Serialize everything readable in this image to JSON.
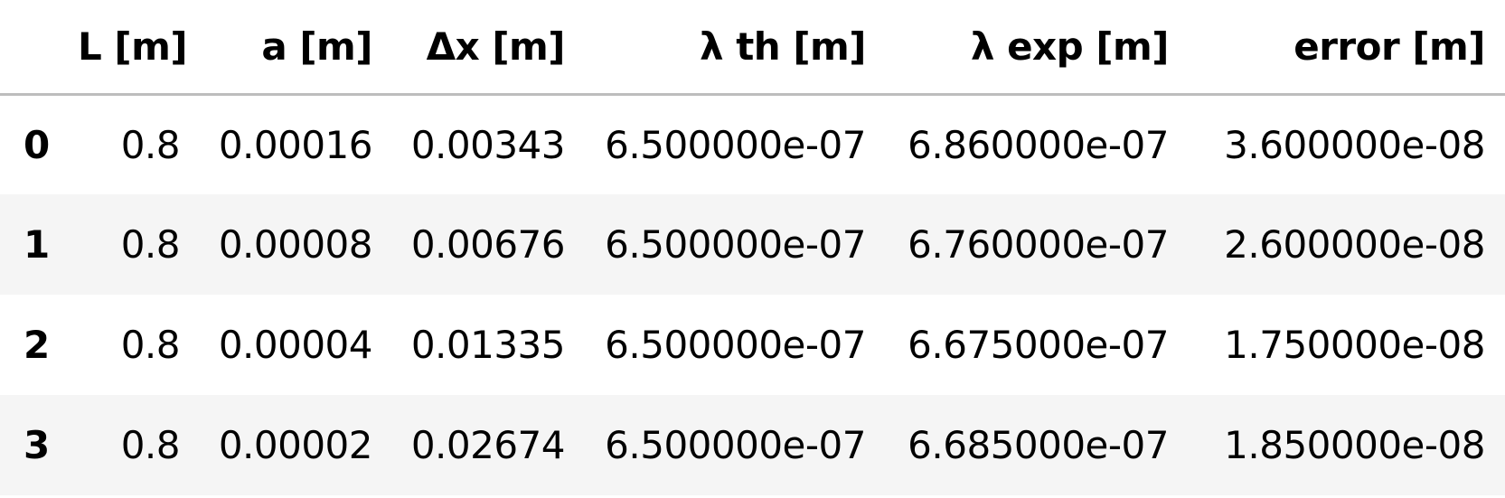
{
  "table": {
    "columns": [
      "",
      "L [m]",
      "a [m]",
      "Δx [m]",
      "λ th [m]",
      "λ exp [m]",
      "error [m]"
    ],
    "rows": [
      {
        "index": "0",
        "cells": [
          "0.8",
          "0.00016",
          "0.00343",
          "6.500000e-07",
          "6.860000e-07",
          "3.600000e-08"
        ]
      },
      {
        "index": "1",
        "cells": [
          "0.8",
          "0.00008",
          "0.00676",
          "6.500000e-07",
          "6.760000e-07",
          "2.600000e-08"
        ]
      },
      {
        "index": "2",
        "cells": [
          "0.8",
          "0.00004",
          "0.01335",
          "6.500000e-07",
          "6.675000e-07",
          "1.750000e-08"
        ]
      },
      {
        "index": "3",
        "cells": [
          "0.8",
          "0.00002",
          "0.02674",
          "6.500000e-07",
          "6.685000e-07",
          "1.850000e-08"
        ]
      }
    ]
  },
  "colors": {
    "header_rule": "#bdbdbd",
    "stripe": "#f5f5f5",
    "background": "#ffffff",
    "text": "#000000"
  }
}
